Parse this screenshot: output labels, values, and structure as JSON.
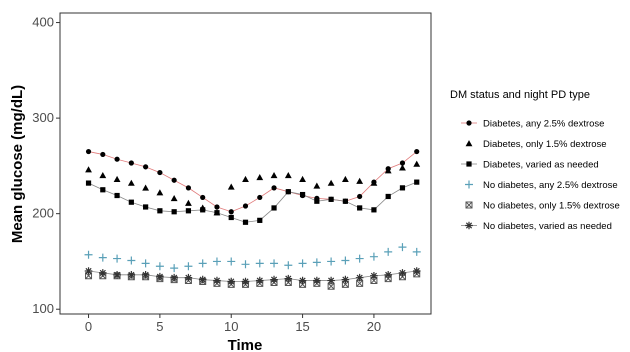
{
  "chart_data": {
    "type": "scatter",
    "xlabel": "Time",
    "ylabel": "Mean glucose (mg/dL)",
    "xlim": [
      -2,
      24
    ],
    "ylim": [
      95,
      410
    ],
    "xticks": [
      0,
      5,
      10,
      15,
      20
    ],
    "yticks": [
      100,
      200,
      300,
      400
    ],
    "grid": false,
    "legend_title": "DM status and night PD type",
    "legend_position": "right",
    "x": [
      0,
      1,
      2,
      3,
      4,
      5,
      6,
      7,
      8,
      9,
      10,
      11,
      12,
      13,
      14,
      15,
      16,
      17,
      18,
      19,
      20,
      21,
      22,
      23
    ],
    "series": [
      {
        "name": "Diabetes, any 2.5% dextrose",
        "marker": "circle",
        "color": "#000000",
        "connector": "#e07a7a",
        "values": [
          265,
          262,
          257,
          253,
          249,
          243,
          235,
          227,
          217,
          207,
          202,
          208,
          217,
          227,
          223,
          219,
          216,
          215,
          213,
          218,
          233,
          247,
          253,
          265
        ]
      },
      {
        "name": "Diabetes, only 1.5% dextrose",
        "marker": "triangle",
        "color": "#000000",
        "connector": null,
        "values": [
          246,
          240,
          236,
          232,
          227,
          222,
          216,
          211,
          206,
          201,
          228,
          236,
          238,
          240,
          240,
          236,
          229,
          232,
          236,
          234,
          232,
          245,
          248,
          252
        ]
      },
      {
        "name": "Diabetes, varied as needed",
        "marker": "square",
        "color": "#000000",
        "connector": "#888888",
        "values": [
          232,
          225,
          219,
          212,
          207,
          203,
          202,
          203,
          204,
          201,
          196,
          191,
          193,
          206,
          223,
          220,
          213,
          215,
          213,
          206,
          204,
          218,
          227,
          233
        ]
      },
      {
        "name": "No diabetes, any 2.5% dextrose",
        "marker": "plus",
        "color": "#5aa0b8",
        "connector": null,
        "values": [
          157,
          154,
          153,
          151,
          148,
          145,
          143,
          145,
          148,
          150,
          150,
          147,
          148,
          148,
          146,
          148,
          149,
          150,
          151,
          153,
          155,
          160,
          165,
          160
        ]
      },
      {
        "name": "No diabetes, only 1.5% dextrose",
        "marker": "boxcross",
        "color": "#555555",
        "connector": null,
        "values": [
          135,
          135,
          135,
          134,
          134,
          132,
          131,
          130,
          129,
          127,
          126,
          126,
          127,
          128,
          128,
          126,
          127,
          124,
          126,
          127,
          130,
          132,
          134,
          137
        ]
      },
      {
        "name": "No diabetes, varied as needed",
        "marker": "asterisk",
        "color": "#333333",
        "connector": "#888888",
        "values": [
          140,
          138,
          136,
          136,
          136,
          134,
          133,
          133,
          131,
          130,
          129,
          129,
          130,
          131,
          132,
          130,
          130,
          130,
          131,
          133,
          135,
          136,
          138,
          140
        ]
      }
    ]
  }
}
